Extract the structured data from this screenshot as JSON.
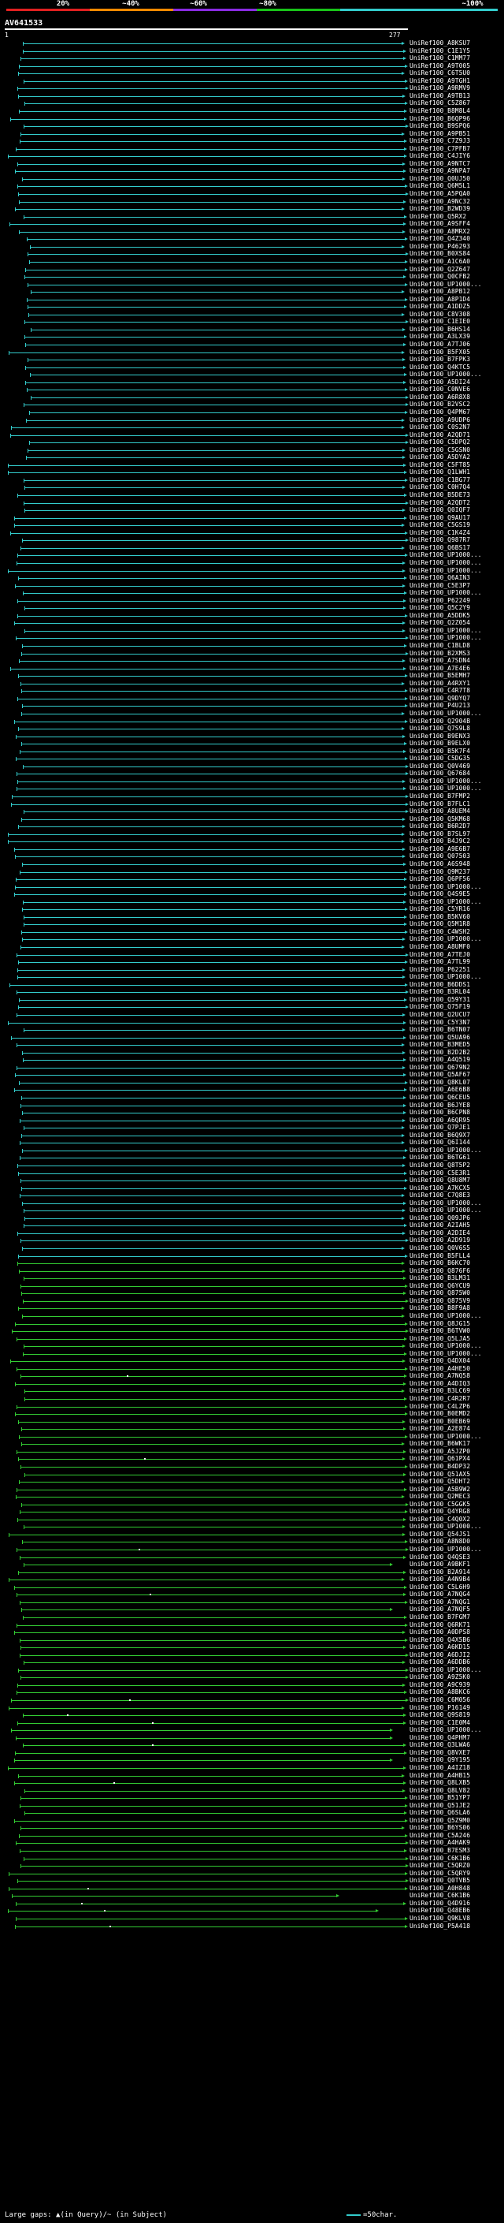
{
  "scale": {
    "labels": [
      "20%",
      "~40%",
      "~60%",
      "~80%",
      "~100%"
    ],
    "colors": [
      "#e02020",
      "#ff8a00",
      "#8a2be2",
      "#19c419",
      "#33cccc"
    ]
  },
  "query": {
    "name": "AV641533",
    "start": "1",
    "end": "277"
  },
  "colors": {
    "cyan": "#33cccc",
    "green": "#33cc33",
    "magenta": "#cc3399"
  },
  "hits": [
    "UniRef100_A8KSU7",
    "UniRef100_C1E1Y5",
    "UniRef100_C1MM77",
    "UniRef100_A9T005",
    "UniRef100_C6T5U0",
    "UniRef100_A9TGH1",
    "UniRef100_A9RMV9",
    "UniRef100_A9TB13",
    "UniRef100_C5Z867",
    "UniRef100_B8M8L4",
    "UniRef100_B6QP96",
    "UniRef100_B9SPQ6",
    "UniRef100_A9PB51",
    "UniRef100_C7Z9J3",
    "UniRef100_C7PFB7",
    "UniRef100_C4JIY6",
    "UniRef100_A9NTC7",
    "UniRef100_A9NPA7",
    "UniRef100_Q0UJ50",
    "UniRef100_Q6M5L1",
    "UniRef100_A5PQA0",
    "UniRef100_A9NC32",
    "UniRef100_B2WD39",
    "UniRef100_Q5RX2",
    "UniRef100_A9SFF4",
    "UniRef100_A8MRX2",
    "UniRef100_Q4Z340",
    "UniRef100_P46293",
    "UniRef100_B0XS84",
    "UniRef100_A1C6A0",
    "UniRef100_Q2Z647",
    "UniRef100_Q0CFB2",
    "UniRef100_UP1000...",
    "UniRef100_A8PB12",
    "UniRef100_A8P1D4",
    "UniRef100_A1DDZ5",
    "UniRef100_C8V308",
    "UniRef100_C1EIE0",
    "UniRef100_B6HS14",
    "UniRef100_A3LX39",
    "UniRef100_A7TJ06",
    "UniRef100_B5FX05",
    "UniRef100_B7FPK3",
    "UniRef100_Q4KTC5",
    "UniRef100_UP1000...",
    "UniRef100_A5DI24",
    "UniRef100_C0NVE6",
    "UniRef100_A6R8X8",
    "UniRef100_B2VSC2",
    "UniRef100_Q4PM67",
    "UniRef100_A9UDP6",
    "UniRef100_C0S2N7",
    "UniRef100_A2QD71",
    "UniRef100_C5DPQ2",
    "UniRef100_C5GSN0",
    "UniRef100_A5DYA2",
    "UniRef100_C5FT85",
    "UniRef100_Q1LWH1",
    "UniRef100_C1BG77",
    "UniRef100_C0H7Q4",
    "UniRef100_B5DE73",
    "UniRef100_A2QDT2",
    "UniRef100_Q0IQF7",
    "UniRef100_Q9AU17",
    "UniRef100_C5GS19",
    "UniRef100_C1K4Z4",
    "UniRef100_Q987R7",
    "UniRef100_Q6BS17",
    "UniRef100_UP1000...",
    "UniRef100_UP1000...",
    "UniRef100_UP1000...",
    "UniRef100_Q6AIN3",
    "UniRef100_C5E3P7",
    "UniRef100_UP1000...",
    "UniRef100_P62249",
    "UniRef100_Q5C2Y9",
    "UniRef100_A5DDK5",
    "UniRef100_Q2Z054",
    "UniRef100_UP1000...",
    "UniRef100_UP1000...",
    "UniRef100_C1BLD8",
    "UniRef100_B2XMS3",
    "UniRef100_A7SDN4",
    "UniRef100_A7E4E6",
    "UniRef100_B5EMH7",
    "UniRef100_A4RXY1",
    "UniRef100_C4R7T8",
    "UniRef100_Q9DYQ7",
    "UniRef100_P4U213",
    "UniRef100_UP1000...",
    "UniRef100_Q2904B",
    "UniRef100_Q7S9L8",
    "UniRef100_B9ENX3",
    "UniRef100_B9ELX0",
    "UniRef100_B5K7F4",
    "UniRef100_C5DG35",
    "UniRef100_Q0V469",
    "UniRef100_Q67684",
    "UniRef100_UP1000...",
    "UniRef100_UP1000...",
    "UniRef100_B7FMP2",
    "UniRef100_B7FLC1",
    "UniRef100_A8UEM4",
    "UniRef100_Q5KM68",
    "UniRef100_B6R2D7",
    "UniRef100_B7SL97",
    "UniRef100_B4J9C2",
    "UniRef100_A9E6B7",
    "UniRef100_Q07503",
    "UniRef100_A6S948",
    "UniRef100_Q9M237",
    "UniRef100_Q6PF56",
    "UniRef100_UP1000...",
    "UniRef100_Q4S9E5",
    "UniRef100_UP1000...",
    "UniRef100_C5YR16",
    "UniRef100_B5KV60",
    "UniRef100_Q5M1R8",
    "UniRef100_C4WSH2",
    "UniRef100_UP1000...",
    "UniRef100_A8UMF0",
    "UniRef100_A7TEJ0",
    "UniRef100_A7TL99",
    "UniRef100_P62251",
    "UniRef100_UP1000...",
    "UniRef100_B6DDS1",
    "UniRef100_B3RL04",
    "UniRef100_Q59Y31",
    "UniRef100_Q75F19",
    "UniRef100_Q2UCU7",
    "UniRef100_C5Y3N7",
    "UniRef100_B6TN07",
    "UniRef100_Q5UA96",
    "UniRef100_B3MED5",
    "UniRef100_B2D2B2",
    "UniRef100_A4Q519",
    "UniRef100_Q679N2",
    "UniRef100_Q5AF67",
    "UniRef100_Q8KL07",
    "UniRef100_A6E6B8",
    "UniRef100_Q6CEU5",
    "UniRef100_B6JYE8",
    "UniRef100_B6CPN8",
    "UniRef100_A6QR95",
    "UniRef100_Q7PJE1",
    "UniRef100_B6Q9X7",
    "UniRef100_Q6I144",
    "UniRef100_UP1000...",
    "UniRef100_B6TG61",
    "UniRef100_Q8T5P2",
    "UniRef100_C5E3R1",
    "UniRef100_Q8U8M7",
    "UniRef100_A7KCX5",
    "UniRef100_C7Q8E3",
    "UniRef100_UP1000...",
    "UniRef100_UP1000...",
    "UniRef100_Q09JP6",
    "UniRef100_A2IAH5",
    "UniRef100_A2DIE4",
    "UniRef100_A2D919",
    "UniRef100_Q0V6S5",
    "UniRef100_B5FLL4",
    "UniRef100_B6KC70",
    "UniRef100_Q876F6",
    "UniRef100_B3LM31",
    "UniRef100_Q6YCU9",
    "UniRef100_Q875W0",
    "UniRef100_Q875V9",
    "UniRef100_B8F9A8",
    "UniRef100_UP1000...",
    "UniRef100_Q8JG15",
    "UniRef100_B6TVW0",
    "UniRef100_Q5LJA5",
    "UniRef100_UP1000...",
    "UniRef100_UP1000...",
    "UniRef100_Q4DX04",
    "UniRef100_A4HE50",
    "UniRef100_A7NQ58",
    "UniRef100_A4DIQ3",
    "UniRef100_B3LC69",
    "UniRef100_C4R2R7",
    "UniRef100_C4LZP6",
    "UniRef100_B0EMD2",
    "UniRef100_B0EB69",
    "UniRef100_A2E874",
    "UniRef100_UP1000...",
    "UniRef100_B6WK17",
    "UniRef100_A5JZP0",
    "UniRef100_Q61PX4",
    "UniRef100_B4DP32",
    "UniRef100_Q51AX5",
    "UniRef100_Q5DHT2",
    "UniRef100_A5B9W2",
    "UniRef100_Q2MEC3",
    "UniRef100_C5GGK5",
    "UniRef100_Q4YRG8",
    "UniRef100_C4Q0X2",
    "UniRef100_UP1000...",
    "UniRef100_Q54JS1",
    "UniRef100_A8N8D0",
    "UniRef100_UP1000...",
    "UniRef100_Q4QSE3",
    "UniRef100_A9BKF1",
    "UniRef100_B2A914",
    "UniRef100_A4N9B4",
    "UniRef100_C5L6H9",
    "UniRef100_A7NQG4",
    "UniRef100_A7NQG1",
    "UniRef100_A7NQF5",
    "UniRef100_B7FGM7",
    "UniRef100_Q6RK71",
    "UniRef100_A0DPS8",
    "UniRef100_Q4X5B6",
    "UniRef100_A6KD15",
    "UniRef100_A6DJI2",
    "UniRef100_A6DDB6",
    "UniRef100_UP1000...",
    "UniRef100_A9Z5K0",
    "UniRef100_A9C939",
    "UniRef100_A8BKC6",
    "UniRef100_C6M056",
    "UniRef100_P16149",
    "UniRef100_Q9S819",
    "UniRef100_C1E0M4",
    "UniRef100_UP1000...",
    "UniRef100_Q4PHM7",
    "UniRef100_Q3LWA6",
    "UniRef100_Q8VXE7",
    "UniRef100_Q9Y195",
    "UniRef100_A4IZ18",
    "UniRef100_A4HB15",
    "UniRef100_Q8LXB5",
    "UniRef100_Q8LV82",
    "UniRef100_B51YP7",
    "UniRef100_Q51JE2",
    "UniRef100_Q6SLA6",
    "UniRef100_Q5Z9M0",
    "UniRef100_B6YS06",
    "UniRef100_C5A246",
    "UniRef100_A4HAK9",
    "UniRef100_B7ESM3",
    "UniRef100_C6K1B6",
    "UniRef100_C5QRZ0",
    "UniRef100_C5QRY9",
    "UniRef100_Q0TVB5",
    "UniRef100_A0H848",
    "UniRef100_C6K1B6",
    "UniRef100_Q4D916",
    "UniRef100_Q48EB6",
    "UniRef100_Q9KLV8",
    "UniRef100_P5A418"
  ],
  "footer": {
    "text": "Large gaps: ▲(in Query)/~ (in Subject)",
    "legend": "=50char."
  }
}
